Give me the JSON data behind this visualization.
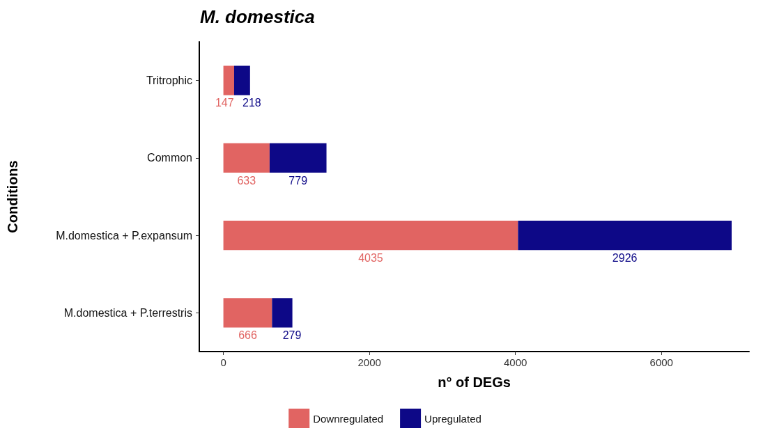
{
  "chart_data": {
    "type": "bar",
    "orientation": "horizontal",
    "stacked": true,
    "title": "M. domestica",
    "xlabel": "n° of DEGs",
    "ylabel": "Conditions",
    "categories": [
      "Tritrophic",
      "Common",
      "M.domestica + P.expansum",
      "M.domestica + P.terrestris"
    ],
    "series": [
      {
        "name": "Downregulated",
        "color": "#e16462",
        "values": [
          147,
          633,
          4035,
          666
        ]
      },
      {
        "name": "Upregulated",
        "color": "#0d0887",
        "values": [
          218,
          779,
          2926,
          279
        ]
      }
    ],
    "xlim": [
      -330,
      7200
    ],
    "xticks": [
      0,
      2000,
      4000,
      6000
    ],
    "data_labels": true,
    "grid": false,
    "legend": "bottom"
  }
}
